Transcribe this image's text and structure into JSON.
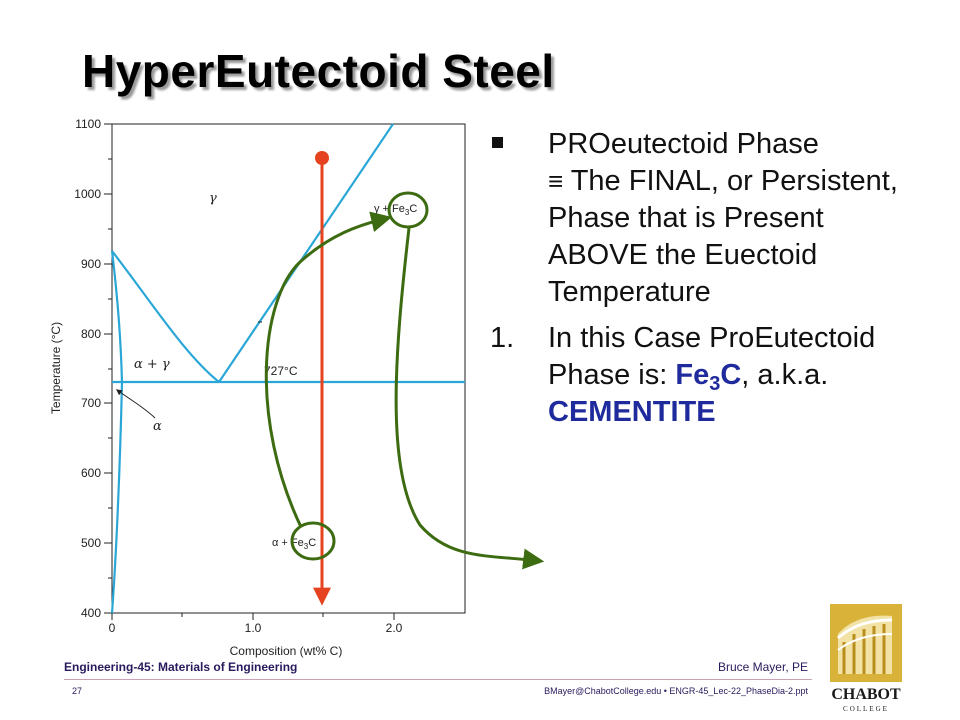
{
  "slide": {
    "title": "HyperEutectoid Steel"
  },
  "bullets": {
    "item1_text": "PROeutectoid Phase",
    "item1_sub": "The FINAL, or Persistent, Phase that is Present ABOVE the Euectoid Temperature",
    "equiv_symbol": "≡",
    "item2_number": "1.",
    "item2_text_a": "In this Case ProEutectoid Phase is:",
    "item2_fe": "Fe",
    "item2_sub3": "3",
    "item2_c": "C",
    "item2_text_b": ", a.k.a.",
    "item2_cementite": "CEMENTITE"
  },
  "diagram": {
    "y_axis_label": "Temperature (°C)",
    "x_axis_label": "Composition (wt% C)",
    "y_ticks": [
      "1100",
      "1000",
      "900",
      "800",
      "700",
      "600",
      "500",
      "400"
    ],
    "x_ticks": [
      "0",
      "1.0",
      "2.0"
    ],
    "region_gamma": "γ",
    "region_gamma_fe3c": "γ + Fe",
    "region_alpha_gamma": "α + γ",
    "region_alpha": "α",
    "region_alpha_fe3c": "α + Fe",
    "fe3c_sub": "3",
    "fe3c_c": "C",
    "eutectoid_temp_label": "727°C",
    "colors": {
      "phase_lines": "#2aa7d6",
      "vertical_path": "#e5431f",
      "annotation_arrows": "#3d6b12"
    }
  },
  "footer": {
    "course": "Engineering-45: Materials of Engineering",
    "author": "Bruce Mayer, PE",
    "page": "27",
    "email_file": "BMayer@ChabotCollege.edu  •  ENGR-45_Lec-22_PhaseDia-2.ppt"
  },
  "logo": {
    "text": "CHABOT",
    "subtext": "COLLEGE"
  }
}
